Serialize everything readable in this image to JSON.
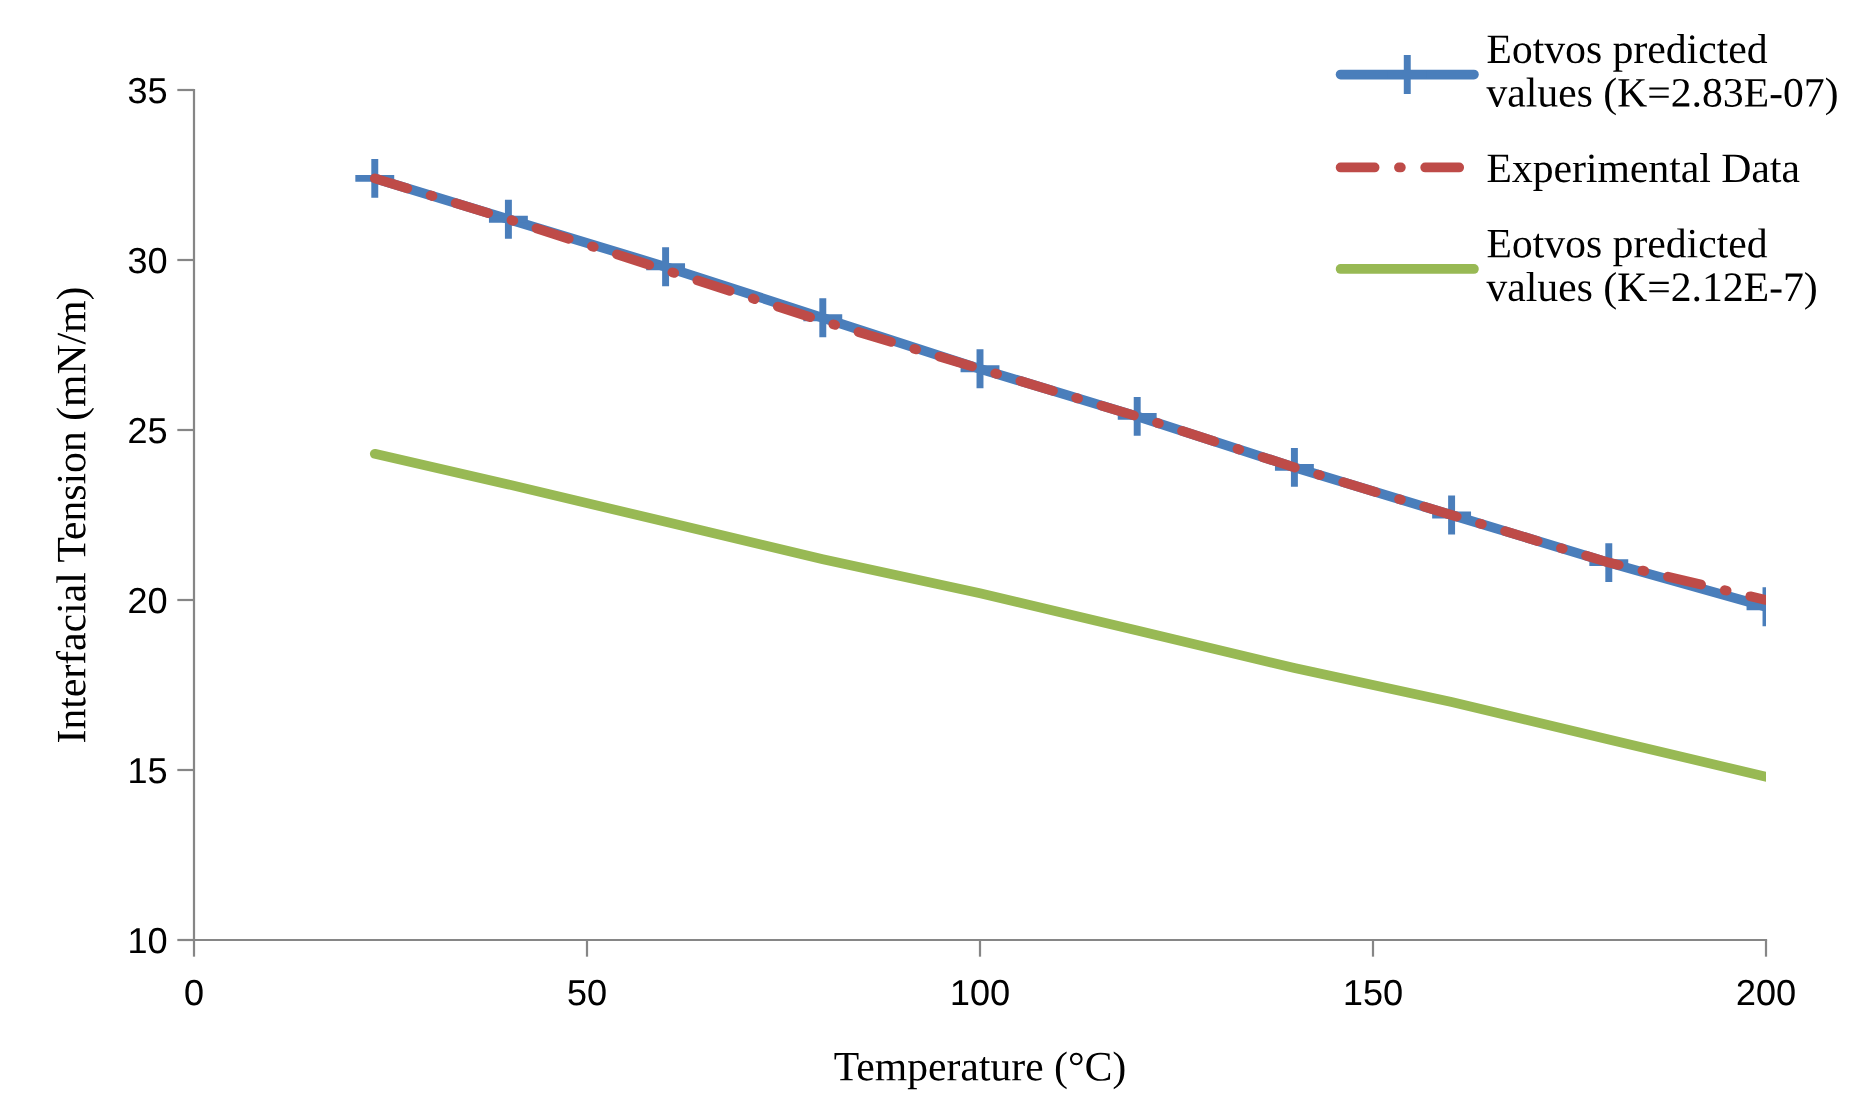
{
  "chart_data": {
    "type": "line",
    "xlabel": "Temperature (°C)",
    "ylabel": "Interfacial Tension (mN/m)",
    "xlim": [
      0,
      200
    ],
    "xticks": [
      0,
      50,
      100,
      150,
      200
    ],
    "ylim": [
      10,
      35
    ],
    "yticks": [
      10,
      15,
      20,
      25,
      30,
      35
    ],
    "grid": false,
    "legend": "top right",
    "series": [
      {
        "name": "Eotvos predicted values (K=2.83E-07)",
        "color": "#4a7ebb",
        "marker": "cross",
        "line_style": "solid",
        "x": [
          23,
          40,
          60,
          80,
          100,
          120,
          140,
          160,
          180,
          200
        ],
        "values": [
          32.4,
          31.2,
          29.8,
          28.3,
          26.8,
          25.4,
          23.9,
          22.5,
          21.1,
          19.8
        ]
      },
      {
        "name": "Experimental Data",
        "color": "#be4b48",
        "marker": "none",
        "line_style": "dashed",
        "x": [
          23,
          40,
          60,
          80,
          100,
          120,
          140,
          160,
          180,
          200
        ],
        "values": [
          32.4,
          31.2,
          29.7,
          28.2,
          26.8,
          25.4,
          23.9,
          22.5,
          21.1,
          20.0
        ]
      },
      {
        "name": "Eotvos predicted values (K=2.12E-7)",
        "color": "#98b954",
        "marker": "none",
        "line_style": "solid",
        "x": [
          23,
          40,
          60,
          80,
          100,
          120,
          140,
          160,
          180,
          200
        ],
        "values": [
          24.3,
          23.4,
          22.3,
          21.2,
          20.2,
          19.1,
          18.0,
          17.0,
          15.9,
          14.8
        ]
      }
    ]
  }
}
